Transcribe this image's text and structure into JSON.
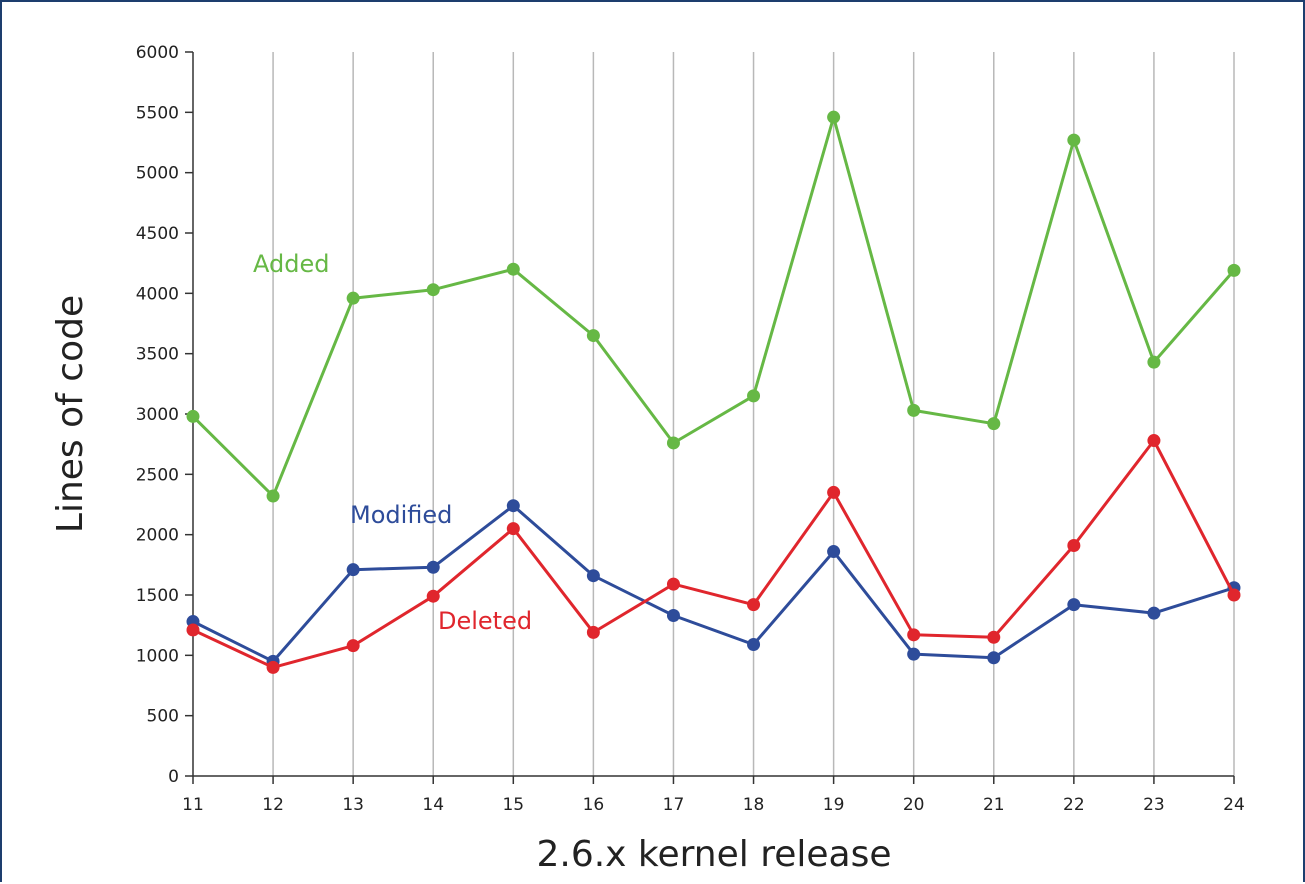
{
  "chart_data": {
    "type": "line",
    "xlabel": "2.6.x kernel release",
    "ylabel": "Lines of code",
    "categories": [
      "11",
      "12",
      "13",
      "14",
      "15",
      "16",
      "17",
      "18",
      "19",
      "20",
      "21",
      "22",
      "23",
      "24"
    ],
    "yticks": [
      "0",
      "500",
      "1000",
      "1500",
      "2000",
      "2500",
      "3000",
      "3500",
      "4000",
      "4500",
      "5000",
      "5500",
      "6000"
    ],
    "ylim": [
      0,
      6000
    ],
    "grid": "vertical",
    "legend": "inline labels",
    "series": [
      {
        "name": "Added",
        "color": "#66b845",
        "values": [
          2980,
          2320,
          3960,
          4030,
          4200,
          3650,
          2760,
          3150,
          5460,
          3030,
          2920,
          5270,
          3430,
          4190
        ]
      },
      {
        "name": "Modified",
        "color": "#2e4c9a",
        "values": [
          1280,
          950,
          1710,
          1730,
          2240,
          1660,
          1330,
          1090,
          1860,
          1010,
          980,
          1420,
          1350,
          1560
        ]
      },
      {
        "name": "Deleted",
        "color": "#e0262d",
        "values": [
          1210,
          900,
          1080,
          1490,
          2050,
          1190,
          1590,
          1420,
          2350,
          1170,
          1150,
          1910,
          2780,
          1500
        ]
      }
    ]
  }
}
